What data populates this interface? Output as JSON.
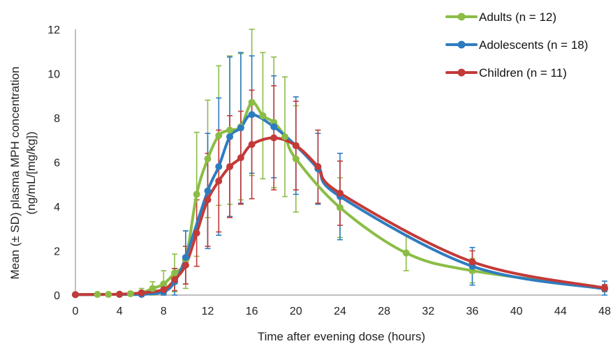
{
  "chart_data": {
    "type": "line",
    "xlabel": "Time after evening dose (hours)",
    "ylabel_line1": "Mean (± SD) plasma MPH concentration",
    "ylabel_line2": "(ng/mL/[mg/kg])",
    "xlim": [
      0,
      48
    ],
    "ylim": [
      0,
      12
    ],
    "x_ticks": [
      0,
      4,
      8,
      12,
      16,
      20,
      24,
      28,
      32,
      36,
      40,
      44,
      48
    ],
    "y_ticks": [
      0,
      2,
      4,
      6,
      8,
      10,
      12
    ],
    "grid": false,
    "legend_position": "top-right",
    "series": [
      {
        "name": "Adults (n = 12)",
        "color": "#8bbd46",
        "points": [
          {
            "x": 0,
            "y": 0.02,
            "sd": 0
          },
          {
            "x": 2,
            "y": 0.03,
            "sd": 0.05
          },
          {
            "x": 3,
            "y": 0.03,
            "sd": 0.05
          },
          {
            "x": 4,
            "y": 0.04,
            "sd": 0.08
          },
          {
            "x": 5,
            "y": 0.06,
            "sd": 0.1
          },
          {
            "x": 6,
            "y": 0.1,
            "sd": 0.2
          },
          {
            "x": 7,
            "y": 0.3,
            "sd": 0.3
          },
          {
            "x": 8,
            "y": 0.5,
            "sd": 0.6
          },
          {
            "x": 9,
            "y": 1.0,
            "sd": 0.85
          },
          {
            "x": 10,
            "y": 1.6,
            "sd": 1.3
          },
          {
            "x": 11,
            "y": 4.55,
            "sd": 2.8
          },
          {
            "x": 12,
            "y": 6.15,
            "sd": 2.65
          },
          {
            "x": 13,
            "y": 7.2,
            "sd": 3.15
          },
          {
            "x": 14,
            "y": 7.45,
            "sd": 3.35
          },
          {
            "x": 15,
            "y": 7.6,
            "sd": 3.3
          },
          {
            "x": 16,
            "y": 8.7,
            "sd": 3.3
          },
          {
            "x": 17,
            "y": 8.1,
            "sd": 2.85
          },
          {
            "x": 18,
            "y": 7.8,
            "sd": 2.95
          },
          {
            "x": 19,
            "y": 7.15,
            "sd": 2.7
          },
          {
            "x": 20,
            "y": 6.15,
            "sd": 2.4
          },
          {
            "x": 24,
            "y": 3.95,
            "sd": 1.35
          },
          {
            "x": 30,
            "y": 1.9,
            "sd": 0.8
          },
          {
            "x": 36,
            "y": 1.1,
            "sd": 0.55
          },
          {
            "x": 48,
            "y": 0.3,
            "sd": 0.15
          }
        ]
      },
      {
        "name": "Adolescents (n = 18)",
        "color": "#2e7cc0",
        "points": [
          {
            "x": 0,
            "y": 0.02,
            "sd": 0
          },
          {
            "x": 4,
            "y": 0.03,
            "sd": 0.03
          },
          {
            "x": 6,
            "y": 0.03,
            "sd": 0.05
          },
          {
            "x": 8,
            "y": 0.15,
            "sd": 0.15
          },
          {
            "x": 9,
            "y": 0.6,
            "sd": 0.6
          },
          {
            "x": 10,
            "y": 1.7,
            "sd": 1.2
          },
          {
            "x": 12,
            "y": 4.7,
            "sd": 2.6
          },
          {
            "x": 13,
            "y": 5.8,
            "sd": 3.1
          },
          {
            "x": 14,
            "y": 7.15,
            "sd": 3.6
          },
          {
            "x": 15,
            "y": 7.55,
            "sd": 3.4
          },
          {
            "x": 16,
            "y": 8.15,
            "sd": 2.65
          },
          {
            "x": 18,
            "y": 7.6,
            "sd": 2.3
          },
          {
            "x": 20,
            "y": 6.75,
            "sd": 2.2
          },
          {
            "x": 22,
            "y": 5.7,
            "sd": 1.6
          },
          {
            "x": 24,
            "y": 4.45,
            "sd": 1.95
          },
          {
            "x": 36,
            "y": 1.3,
            "sd": 0.85
          },
          {
            "x": 48,
            "y": 0.28,
            "sd": 0.35
          }
        ]
      },
      {
        "name": "Children (n = 11)",
        "color": "#c33a38",
        "points": [
          {
            "x": 0,
            "y": 0.02,
            "sd": 0
          },
          {
            "x": 4,
            "y": 0.04,
            "sd": 0.03
          },
          {
            "x": 6,
            "y": 0.1,
            "sd": 0.1
          },
          {
            "x": 8,
            "y": 0.25,
            "sd": 0.2
          },
          {
            "x": 9,
            "y": 0.7,
            "sd": 0.5
          },
          {
            "x": 10,
            "y": 1.35,
            "sd": 0.85
          },
          {
            "x": 11,
            "y": 2.8,
            "sd": 1.5
          },
          {
            "x": 12,
            "y": 4.3,
            "sd": 2.1
          },
          {
            "x": 13,
            "y": 5.15,
            "sd": 2.3
          },
          {
            "x": 14,
            "y": 5.8,
            "sd": 2.3
          },
          {
            "x": 15,
            "y": 6.2,
            "sd": 2.1
          },
          {
            "x": 16,
            "y": 6.8,
            "sd": 2.45
          },
          {
            "x": 18,
            "y": 7.1,
            "sd": 2.35
          },
          {
            "x": 20,
            "y": 6.75,
            "sd": 2.0
          },
          {
            "x": 22,
            "y": 5.8,
            "sd": 1.65
          },
          {
            "x": 24,
            "y": 4.6,
            "sd": 1.45
          },
          {
            "x": 36,
            "y": 1.5,
            "sd": 0.5
          },
          {
            "x": 48,
            "y": 0.32,
            "sd": 0.15
          }
        ]
      }
    ]
  }
}
